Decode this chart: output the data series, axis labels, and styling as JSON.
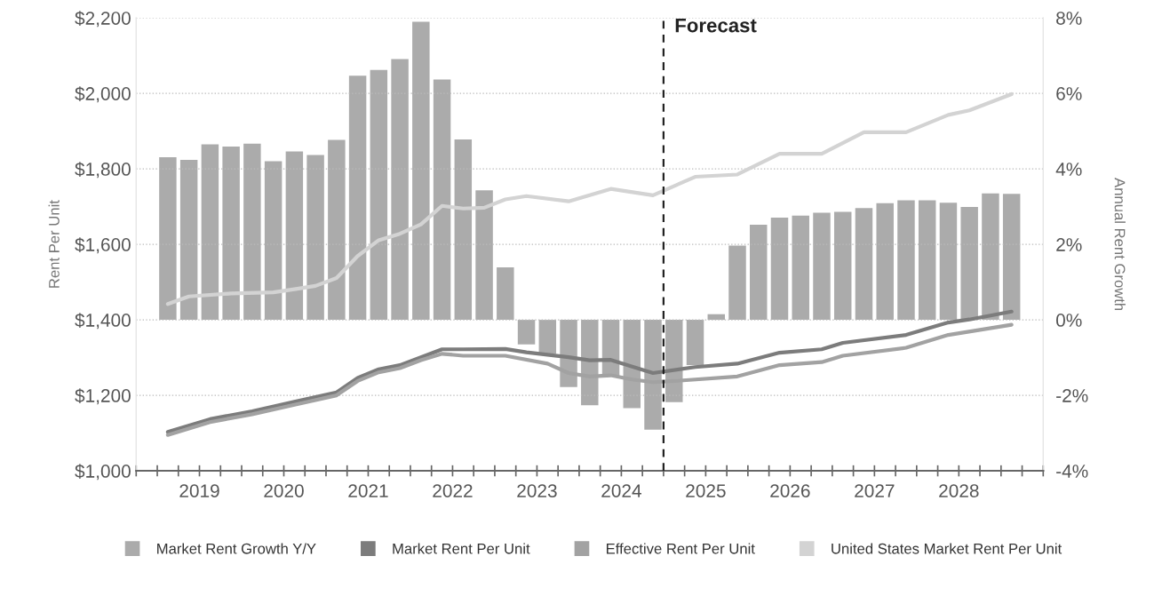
{
  "chart_data": {
    "type": "bar",
    "ylabel": "Rent Per Unit",
    "y2label": "Annual Rent Growth",
    "xlim": [
      2018.75,
      2029.5
    ],
    "xticks": [
      {
        "value": 2018.75,
        "label": null
      },
      {
        "value": 2019,
        "label": null
      },
      {
        "value": 2019.25,
        "label": null
      },
      {
        "value": 2019.5,
        "label": "2019"
      },
      {
        "value": 2019.75,
        "label": null
      },
      {
        "value": 2020,
        "label": null
      },
      {
        "value": 2020.25,
        "label": null
      },
      {
        "value": 2020.5,
        "label": "2020"
      },
      {
        "value": 2020.75,
        "label": null
      },
      {
        "value": 2021,
        "label": null
      },
      {
        "value": 2021.25,
        "label": null
      },
      {
        "value": 2021.5,
        "label": "2021"
      },
      {
        "value": 2021.75,
        "label": null
      },
      {
        "value": 2022,
        "label": null
      },
      {
        "value": 2022.25,
        "label": null
      },
      {
        "value": 2022.5,
        "label": "2022"
      },
      {
        "value": 2022.75,
        "label": null
      },
      {
        "value": 2023,
        "label": null
      },
      {
        "value": 2023.25,
        "label": null
      },
      {
        "value": 2023.5,
        "label": "2023"
      },
      {
        "value": 2023.75,
        "label": null
      },
      {
        "value": 2024,
        "label": null
      },
      {
        "value": 2024.25,
        "label": null
      },
      {
        "value": 2024.5,
        "label": "2024"
      },
      {
        "value": 2024.75,
        "label": null
      },
      {
        "value": 2025,
        "label": null
      },
      {
        "value": 2025.25,
        "label": null
      },
      {
        "value": 2025.5,
        "label": "2025"
      },
      {
        "value": 2025.75,
        "label": null
      },
      {
        "value": 2026,
        "label": null
      },
      {
        "value": 2026.25,
        "label": null
      },
      {
        "value": 2026.5,
        "label": "2026"
      },
      {
        "value": 2026.75,
        "label": null
      },
      {
        "value": 2027,
        "label": null
      },
      {
        "value": 2027.25,
        "label": null
      },
      {
        "value": 2027.5,
        "label": "2027"
      },
      {
        "value": 2027.75,
        "label": null
      },
      {
        "value": 2028,
        "label": null
      },
      {
        "value": 2028.25,
        "label": null
      },
      {
        "value": 2028.5,
        "label": "2028"
      },
      {
        "value": 2028.75,
        "label": null
      },
      {
        "value": 2029,
        "label": null
      },
      {
        "value": 2029.25,
        "label": null
      },
      {
        "value": 2029.5,
        "label": null
      }
    ],
    "ylim": [
      1000,
      2200
    ],
    "yticks": [
      {
        "value": 1000,
        "label": "$1,000"
      },
      {
        "value": 1200,
        "label": "$1,200"
      },
      {
        "value": 1400,
        "label": "$1,400"
      },
      {
        "value": 1600,
        "label": "$1,600"
      },
      {
        "value": 1800,
        "label": "$1,800"
      },
      {
        "value": 2000,
        "label": "$2,000"
      },
      {
        "value": 2200,
        "label": "$2,200"
      }
    ],
    "y2lim": [
      -4,
      8
    ],
    "y2ticks": [
      {
        "value": -4,
        "label": "-4%"
      },
      {
        "value": -2,
        "label": "-2%"
      },
      {
        "value": 0,
        "label": "0%"
      },
      {
        "value": 2,
        "label": "2%"
      },
      {
        "value": 4,
        "label": "4%"
      },
      {
        "value": 6,
        "label": "6%"
      },
      {
        "value": 8,
        "label": "8%"
      }
    ],
    "grid": "y",
    "legend": "bottom",
    "ref_lines": [
      {
        "axis": "x",
        "value": 2025,
        "label": "Forecast",
        "color": "#222222",
        "line_style": "dashed"
      }
    ],
    "series": [
      {
        "name": "Market Rent Growth Y/Y",
        "axis": "y2",
        "color": "#ababab",
        "x": [
          2019.125,
          2019.375,
          2019.625,
          2019.875,
          2020.125,
          2020.375,
          2020.625,
          2020.875,
          2021.125,
          2021.375,
          2021.625,
          2021.875,
          2022.125,
          2022.375,
          2022.625,
          2022.875,
          2023.125,
          2023.375,
          2023.625,
          2023.875,
          2024.125,
          2024.375,
          2024.625,
          2024.875,
          2025.125,
          2025.375,
          2025.625,
          2025.875,
          2026.125,
          2026.375,
          2026.625,
          2026.875,
          2027.125,
          2027.375,
          2027.625,
          2027.875,
          2028.125,
          2028.375,
          2028.625,
          2028.875,
          2029.125
        ],
        "values": [
          4.31,
          4.24,
          4.65,
          4.59,
          4.67,
          4.2,
          4.46,
          4.37,
          4.77,
          6.47,
          6.62,
          6.91,
          7.9,
          6.37,
          4.78,
          3.43,
          1.39,
          -0.65,
          -0.9,
          -1.78,
          -2.26,
          -1.5,
          -2.34,
          -2.91,
          -2.18,
          -1.2,
          0.15,
          1.97,
          2.52,
          2.71,
          2.76,
          2.84,
          2.86,
          2.96,
          3.09,
          3.17,
          3.17,
          3.1,
          2.99,
          3.35,
          3.34
        ]
      },
      {
        "name": "Market Rent Per Unit",
        "type": "line",
        "color": "#7c7c7c",
        "x": [
          2019.125,
          2019.625,
          2020.125,
          2020.625,
          2021.125,
          2021.375,
          2021.625,
          2021.875,
          2022.125,
          2022.375,
          2022.625,
          2023.125,
          2023.375,
          2023.875,
          2024.125,
          2024.375,
          2024.875,
          2025.375,
          2025.875,
          2026.375,
          2026.875,
          2027.125,
          2027.875,
          2028.375,
          2028.625,
          2029.125
        ],
        "values": [
          1103,
          1137,
          1158,
          1183,
          1208,
          1246,
          1269,
          1280,
          1301,
          1322,
          1322,
          1323,
          1314,
          1301,
          1293,
          1294,
          1259,
          1275,
          1284,
          1313,
          1322,
          1339,
          1360,
          1393,
          1401,
          1422
        ]
      },
      {
        "name": "Effective Rent Per Unit",
        "type": "line",
        "color": "#a2a2a2",
        "x": [
          2019.125,
          2019.625,
          2020.125,
          2020.625,
          2021.125,
          2021.375,
          2021.625,
          2021.875,
          2022.125,
          2022.375,
          2022.625,
          2023.125,
          2023.625,
          2023.875,
          2024.125,
          2024.375,
          2024.625,
          2024.875,
          2025.125,
          2025.875,
          2026.375,
          2026.875,
          2027.125,
          2027.875,
          2028.375,
          2029.125
        ],
        "values": [
          1095,
          1129,
          1150,
          1175,
          1200,
          1238,
          1261,
          1272,
          1293,
          1310,
          1305,
          1305,
          1284,
          1259,
          1250,
          1253,
          1242,
          1235,
          1238,
          1250,
          1280,
          1288,
          1305,
          1326,
          1360,
          1387
        ]
      },
      {
        "name": "United States Market Rent Per Unit",
        "type": "line",
        "color": "#d3d3d3",
        "x": [
          2019.125,
          2019.375,
          2019.875,
          2020.375,
          2020.625,
          2020.875,
          2021.125,
          2021.375,
          2021.625,
          2021.875,
          2022.125,
          2022.375,
          2022.625,
          2022.875,
          2023.125,
          2023.375,
          2023.875,
          2024.375,
          2024.875,
          2025.375,
          2025.875,
          2026.375,
          2026.875,
          2027.375,
          2027.875,
          2028.375,
          2028.625,
          2029.125
        ],
        "values": [
          1442,
          1462,
          1470,
          1473,
          1481,
          1490,
          1511,
          1569,
          1611,
          1628,
          1653,
          1702,
          1695,
          1697,
          1719,
          1728,
          1714,
          1747,
          1730,
          1779,
          1785,
          1840,
          1840,
          1897,
          1897,
          1943,
          1955,
          1998
        ]
      }
    ]
  }
}
